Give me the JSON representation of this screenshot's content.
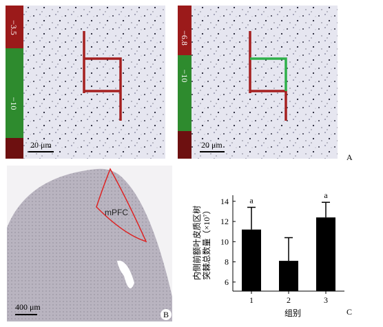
{
  "panel_a": {
    "label": "A",
    "images": [
      {
        "marker_top": "−3.5",
        "marker_mid": "−10",
        "scale_bar": "20 μm"
      },
      {
        "marker_top": "−6.8",
        "marker_mid": "−10",
        "scale_bar": "20 μm"
      }
    ]
  },
  "panel_b": {
    "label": "B",
    "region": "mPFC",
    "scale_bar": "400 μm"
  },
  "chart_data": {
    "type": "bar",
    "panel_label": "C",
    "ylabel": [
      "内侧前额叶皮质区树",
      "突棘总数量（×10⁷）"
    ],
    "xlabel": "组别",
    "categories": [
      "1",
      "2",
      "3"
    ],
    "values": [
      11.2,
      8.1,
      12.4
    ],
    "errors": [
      2.2,
      2.3,
      1.5
    ],
    "annotations": [
      "a",
      null,
      "a"
    ],
    "color": "#000000",
    "ylim": [
      5.1,
      14.6
    ],
    "yticks": [
      6,
      8,
      10,
      12,
      14
    ]
  }
}
